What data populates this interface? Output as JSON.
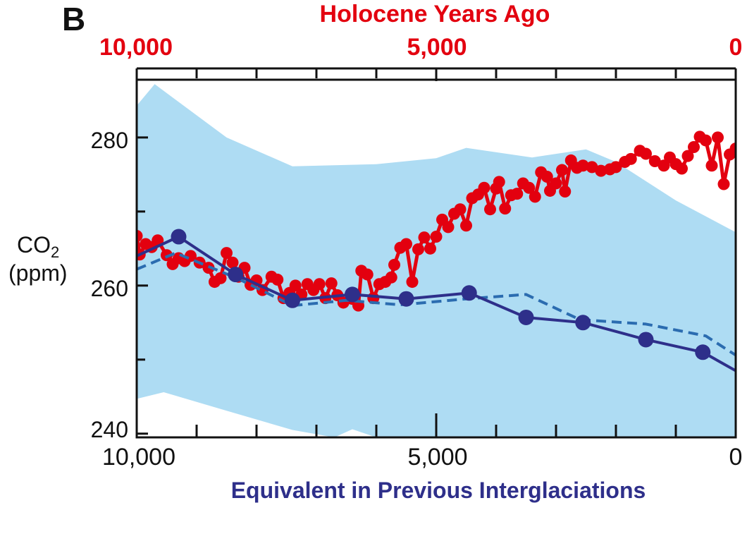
{
  "panel_label": "B",
  "colors": {
    "band": "#aedcf3",
    "holocene": "#e3000f",
    "interglacial": "#2e2f8a",
    "interglacial_dashed": "#2b6cb0",
    "axis": "#111111"
  },
  "chart_data": {
    "type": "line",
    "top_axis": {
      "title": "Holocene Years Ago",
      "range": [
        10000,
        0
      ],
      "ticks": [
        10000,
        5000,
        0
      ],
      "tick_labels": [
        "10,000",
        "5,000",
        "0"
      ],
      "minor_step": 1000
    },
    "bottom_axis": {
      "title": "Equivalent in Previous Interglaciations",
      "range": [
        10000,
        0
      ],
      "ticks": [
        10000,
        5000,
        0
      ],
      "tick_labels": [
        "10,000",
        "5,000",
        "0"
      ],
      "minor_step": 1000
    },
    "y_axis": {
      "label_main": "CO",
      "label_sub": "2",
      "label_unit": "(ppm)",
      "range": [
        239.5,
        287.8
      ],
      "ticks": [
        240,
        260,
        280
      ],
      "tick_labels": [
        "240",
        "260",
        "280"
      ],
      "minor_ticks": [
        250,
        270
      ]
    },
    "grid": false,
    "band": {
      "upper": [
        [
          10000,
          284.3
        ],
        [
          9700,
          287.2
        ],
        [
          8500,
          280
        ],
        [
          7400,
          276.1
        ],
        [
          6000,
          276.4
        ],
        [
          5000,
          277.2
        ],
        [
          4500,
          278.6
        ],
        [
          3400,
          277.3
        ],
        [
          2500,
          278.4
        ],
        [
          2000,
          276.7
        ],
        [
          1000,
          271.5
        ],
        [
          0,
          267.2
        ]
      ],
      "lower": [
        [
          10000,
          244.7
        ],
        [
          9550,
          245.6
        ],
        [
          8500,
          243.1
        ],
        [
          7400,
          240.5
        ],
        [
          6700,
          239.5
        ],
        [
          6400,
          240.6
        ],
        [
          6000,
          239.5
        ],
        [
          0,
          239.5
        ]
      ]
    },
    "series": [
      {
        "style": "holocene",
        "values": [
          [
            10000,
            266.7
          ],
          [
            9950,
            264.2
          ],
          [
            9850,
            265.6
          ],
          [
            9750,
            265.2
          ],
          [
            9650,
            266.1
          ],
          [
            9500,
            264.1
          ],
          [
            9400,
            262.9
          ],
          [
            9300,
            263.7
          ],
          [
            9200,
            263.3
          ],
          [
            9100,
            264.0
          ],
          [
            8950,
            263.1
          ],
          [
            8800,
            262.4
          ],
          [
            8700,
            260.5
          ],
          [
            8600,
            261.0
          ],
          [
            8500,
            264.4
          ],
          [
            8400,
            263.1
          ],
          [
            8300,
            261.2
          ],
          [
            8200,
            262.4
          ],
          [
            8100,
            260.1
          ],
          [
            8000,
            260.7
          ],
          [
            7900,
            259.4
          ],
          [
            7750,
            261.2
          ],
          [
            7650,
            260.8
          ],
          [
            7550,
            258.3
          ],
          [
            7450,
            259.0
          ],
          [
            7350,
            260.0
          ],
          [
            7250,
            258.8
          ],
          [
            7150,
            260.2
          ],
          [
            7050,
            259.4
          ],
          [
            6950,
            260.2
          ],
          [
            6850,
            258.3
          ],
          [
            6750,
            260.3
          ],
          [
            6650,
            258.7
          ],
          [
            6550,
            257.7
          ],
          [
            6400,
            258.2
          ],
          [
            6300,
            257.3
          ],
          [
            6250,
            262.0
          ],
          [
            6150,
            261.5
          ],
          [
            6050,
            258.3
          ],
          [
            5950,
            260.2
          ],
          [
            5850,
            260.5
          ],
          [
            5750,
            261.1
          ],
          [
            5700,
            262.8
          ],
          [
            5600,
            265.1
          ],
          [
            5500,
            265.6
          ],
          [
            5400,
            260.5
          ],
          [
            5300,
            264.9
          ],
          [
            5200,
            266.5
          ],
          [
            5100,
            265.0
          ],
          [
            5000,
            266.6
          ],
          [
            4900,
            268.9
          ],
          [
            4800,
            267.9
          ],
          [
            4700,
            269.7
          ],
          [
            4600,
            270.3
          ],
          [
            4500,
            268.1
          ],
          [
            4400,
            271.8
          ],
          [
            4300,
            272.3
          ],
          [
            4200,
            273.2
          ],
          [
            4100,
            270.3
          ],
          [
            4000,
            273.1
          ],
          [
            3950,
            274.0
          ],
          [
            3850,
            270.4
          ],
          [
            3750,
            272.2
          ],
          [
            3650,
            272.4
          ],
          [
            3550,
            273.8
          ],
          [
            3450,
            273.2
          ],
          [
            3350,
            272.0
          ],
          [
            3250,
            275.3
          ],
          [
            3150,
            274.7
          ],
          [
            3100,
            272.8
          ],
          [
            3000,
            273.8
          ],
          [
            2900,
            275.6
          ],
          [
            2850,
            272.7
          ],
          [
            2750,
            276.9
          ],
          [
            2650,
            275.9
          ],
          [
            2550,
            276.2
          ],
          [
            2400,
            276.0
          ],
          [
            2250,
            275.5
          ],
          [
            2100,
            275.7
          ],
          [
            2000,
            276.0
          ],
          [
            1850,
            276.7
          ],
          [
            1750,
            277.1
          ],
          [
            1600,
            278.2
          ],
          [
            1500,
            277.8
          ],
          [
            1350,
            276.8
          ],
          [
            1200,
            276.2
          ],
          [
            1100,
            277.3
          ],
          [
            1000,
            276.4
          ],
          [
            900,
            275.8
          ],
          [
            800,
            277.5
          ],
          [
            700,
            278.7
          ],
          [
            600,
            280.1
          ],
          [
            500,
            279.6
          ],
          [
            400,
            276.2
          ],
          [
            300,
            280.0
          ],
          [
            200,
            273.7
          ],
          [
            100,
            277.7
          ],
          [
            0,
            278.5
          ]
        ]
      },
      {
        "style": "interglacial",
        "values": [
          [
            10000,
            264.0
          ],
          [
            9300,
            266.6
          ],
          [
            8350,
            261.5
          ],
          [
            7400,
            258.0
          ],
          [
            6400,
            258.8
          ],
          [
            5500,
            258.2
          ],
          [
            4450,
            259.0
          ],
          [
            3500,
            255.7
          ],
          [
            2550,
            255.0
          ],
          [
            1500,
            252.7
          ],
          [
            550,
            251.0
          ],
          [
            0,
            248.5
          ]
        ],
        "markers": [
          [
            9300,
            266.6
          ],
          [
            8350,
            261.5
          ],
          [
            7400,
            258.0
          ],
          [
            6400,
            258.8
          ],
          [
            5500,
            258.2
          ],
          [
            4450,
            259.0
          ],
          [
            3500,
            255.7
          ],
          [
            2550,
            255.0
          ],
          [
            1500,
            252.7
          ],
          [
            550,
            251.0
          ]
        ]
      },
      {
        "style": "interglacial_dashed",
        "values": [
          [
            10000,
            262.2
          ],
          [
            9350,
            264.4
          ],
          [
            8300,
            260.9
          ],
          [
            7400,
            257.3
          ],
          [
            6500,
            258.0
          ],
          [
            5600,
            257.4
          ],
          [
            4500,
            258.2
          ],
          [
            3500,
            258.8
          ],
          [
            2600,
            255.4
          ],
          [
            1500,
            254.8
          ],
          [
            500,
            253.2
          ],
          [
            0,
            250.6
          ]
        ]
      }
    ]
  }
}
